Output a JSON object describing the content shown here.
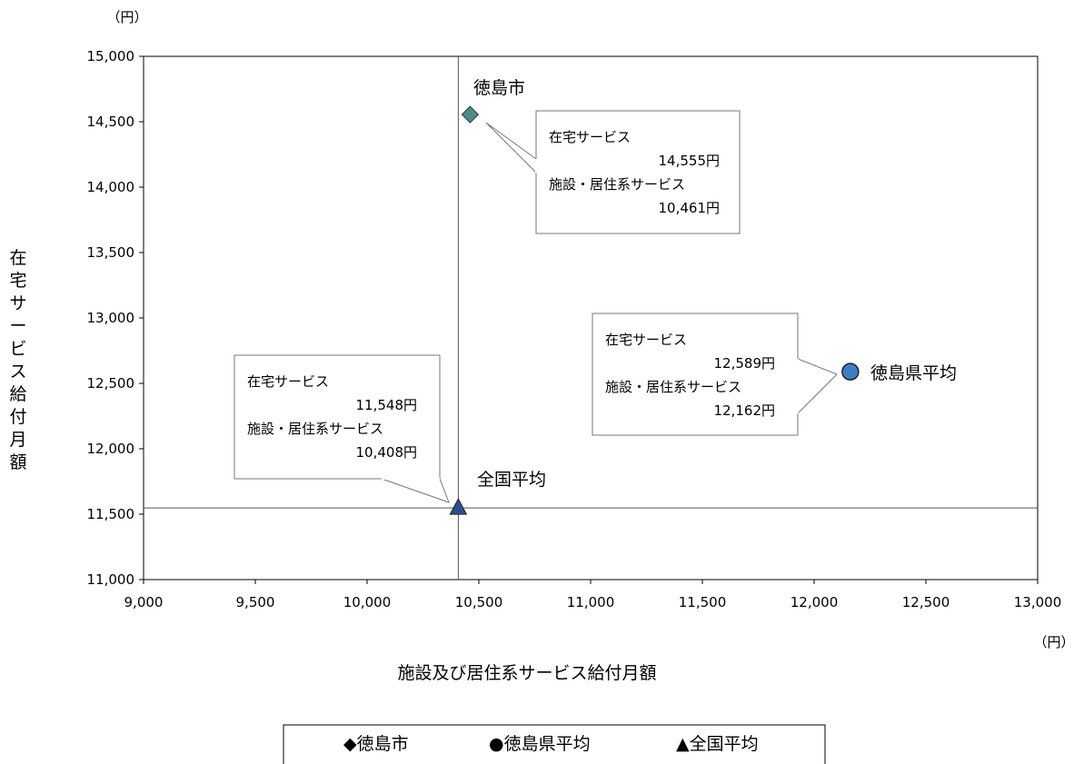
{
  "chart_data": {
    "type": "scatter",
    "xlabel": "施設及び居住系サービス給付月額",
    "ylabel": "在宅サービス給付月額",
    "x_unit": "（円）",
    "y_unit": "（円）",
    "xlim": [
      9000,
      13000
    ],
    "ylim": [
      11000,
      15000
    ],
    "x_ticks": [
      9000,
      9500,
      10000,
      10500,
      11000,
      11500,
      12000,
      12500,
      13000
    ],
    "y_ticks": [
      11000,
      11500,
      12000,
      12500,
      13000,
      13500,
      14000,
      14500,
      15000
    ],
    "x_tick_labels": [
      "9,000",
      "9,500",
      "10,000",
      "10,500",
      "11,000",
      "11,500",
      "12,000",
      "12,500",
      "13,000"
    ],
    "y_tick_labels": [
      "11,000",
      "11,500",
      "12,000",
      "12,500",
      "13,000",
      "13,500",
      "14,000",
      "14,500",
      "15,000"
    ],
    "grid": false,
    "reference_lines": {
      "x": 10408,
      "y": 11548
    },
    "legend_position": "bottom",
    "series": [
      {
        "name": "徳島市",
        "legend_label": "◆徳島市",
        "marker": "diamond",
        "color": "#4f8a8b",
        "x": 10461,
        "y": 14555,
        "callout": [
          "在宅サービス",
          "14,555円",
          "施設・居住系サービス",
          "10,461円"
        ]
      },
      {
        "name": "徳島県平均",
        "legend_label": "●徳島県平均",
        "marker": "circle",
        "color": "#3f7fc1",
        "x": 12162,
        "y": 12589,
        "callout": [
          "在宅サービス",
          "12,589円",
          "施設・居住系サービス",
          "12,162円"
        ]
      },
      {
        "name": "全国平均",
        "legend_label": "▲全国平均",
        "marker": "triangle",
        "color": "#2d4f8e",
        "x": 10408,
        "y": 11548,
        "callout": [
          "在宅サービス",
          "11,548円",
          "施設・居住系サービス",
          "10,408円"
        ]
      }
    ]
  }
}
